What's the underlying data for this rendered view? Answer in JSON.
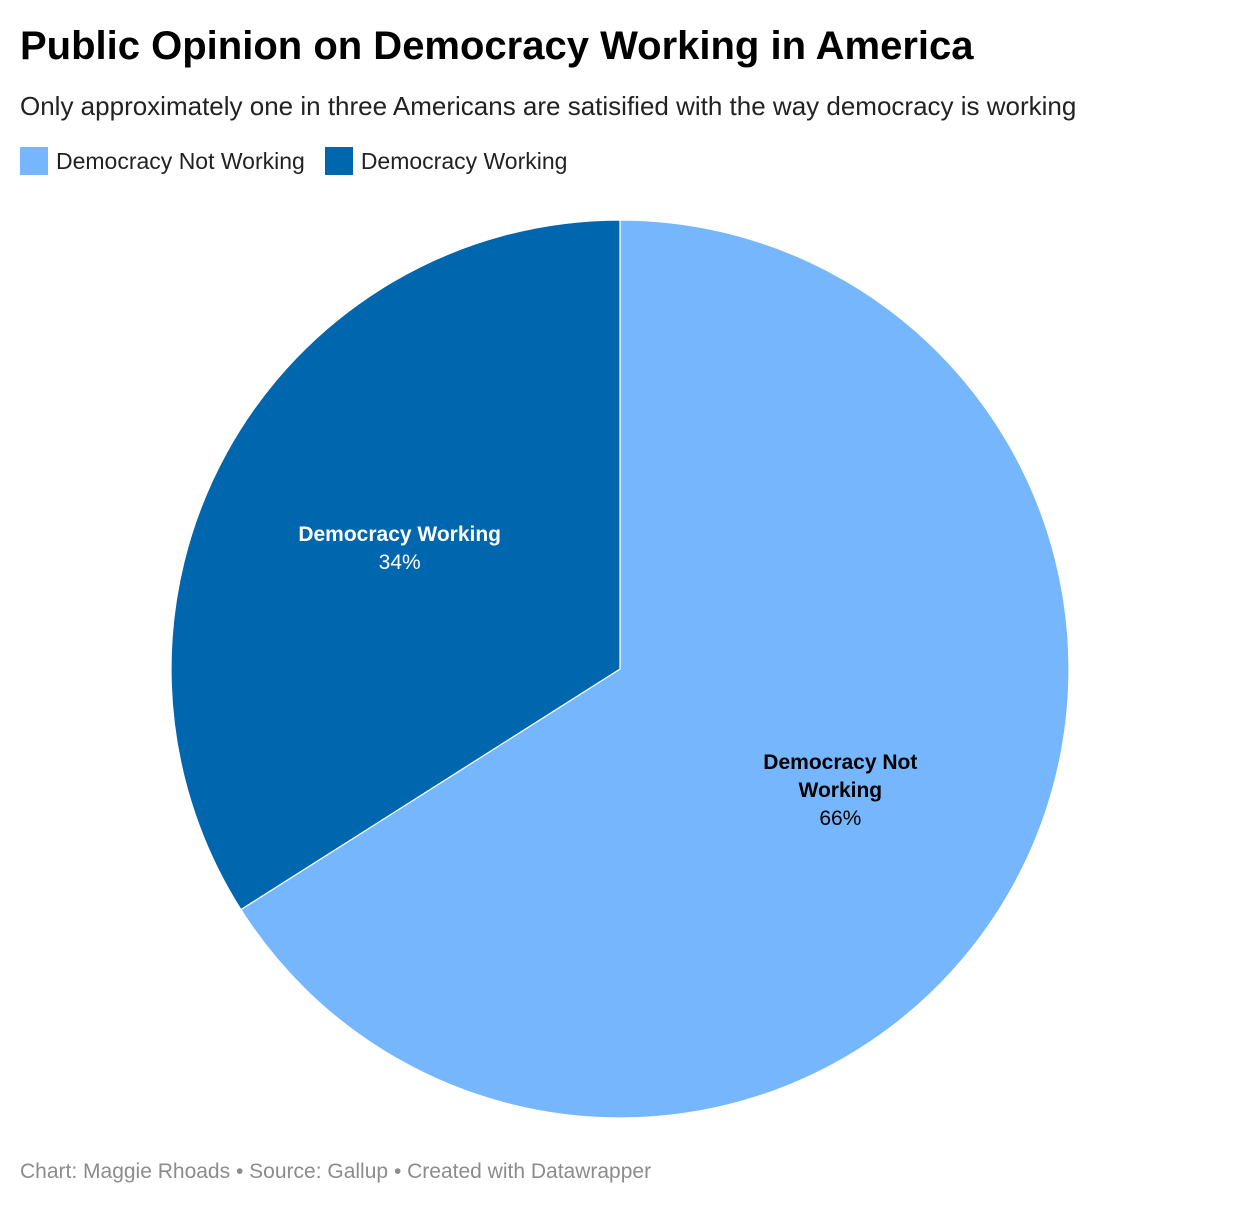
{
  "title": "Public Opinion on Democracy Working in America",
  "subtitle": "Only approximately one in three Americans are satisified with the way democracy is working",
  "footer": {
    "chart_credit": "Chart: Maggie Rhoads",
    "source": "Source: Gallup",
    "created_with": "Created with Datawrapper",
    "separator": "•"
  },
  "colors": {
    "not_working": "#75b6fd",
    "working": "#0066ae"
  },
  "chart_data": {
    "type": "pie",
    "title": "Public Opinion on Democracy Working in America",
    "subtitle": "Only approximately one in three Americans are satisified with the way democracy is working",
    "legend_position": "top-left",
    "slices": [
      {
        "label": "Democracy Not Working",
        "label_lines": [
          "Democracy Not",
          "Working"
        ],
        "value": 66,
        "value_label": "66%",
        "color": "#75b6fd",
        "label_color": "#000000"
      },
      {
        "label": "Democracy Working",
        "label_lines": [
          "Democracy Working"
        ],
        "value": 34,
        "value_label": "34%",
        "color": "#0066ae",
        "label_color": "#ffffff"
      }
    ],
    "start_angle_deg": 0,
    "direction": "clockwise"
  }
}
